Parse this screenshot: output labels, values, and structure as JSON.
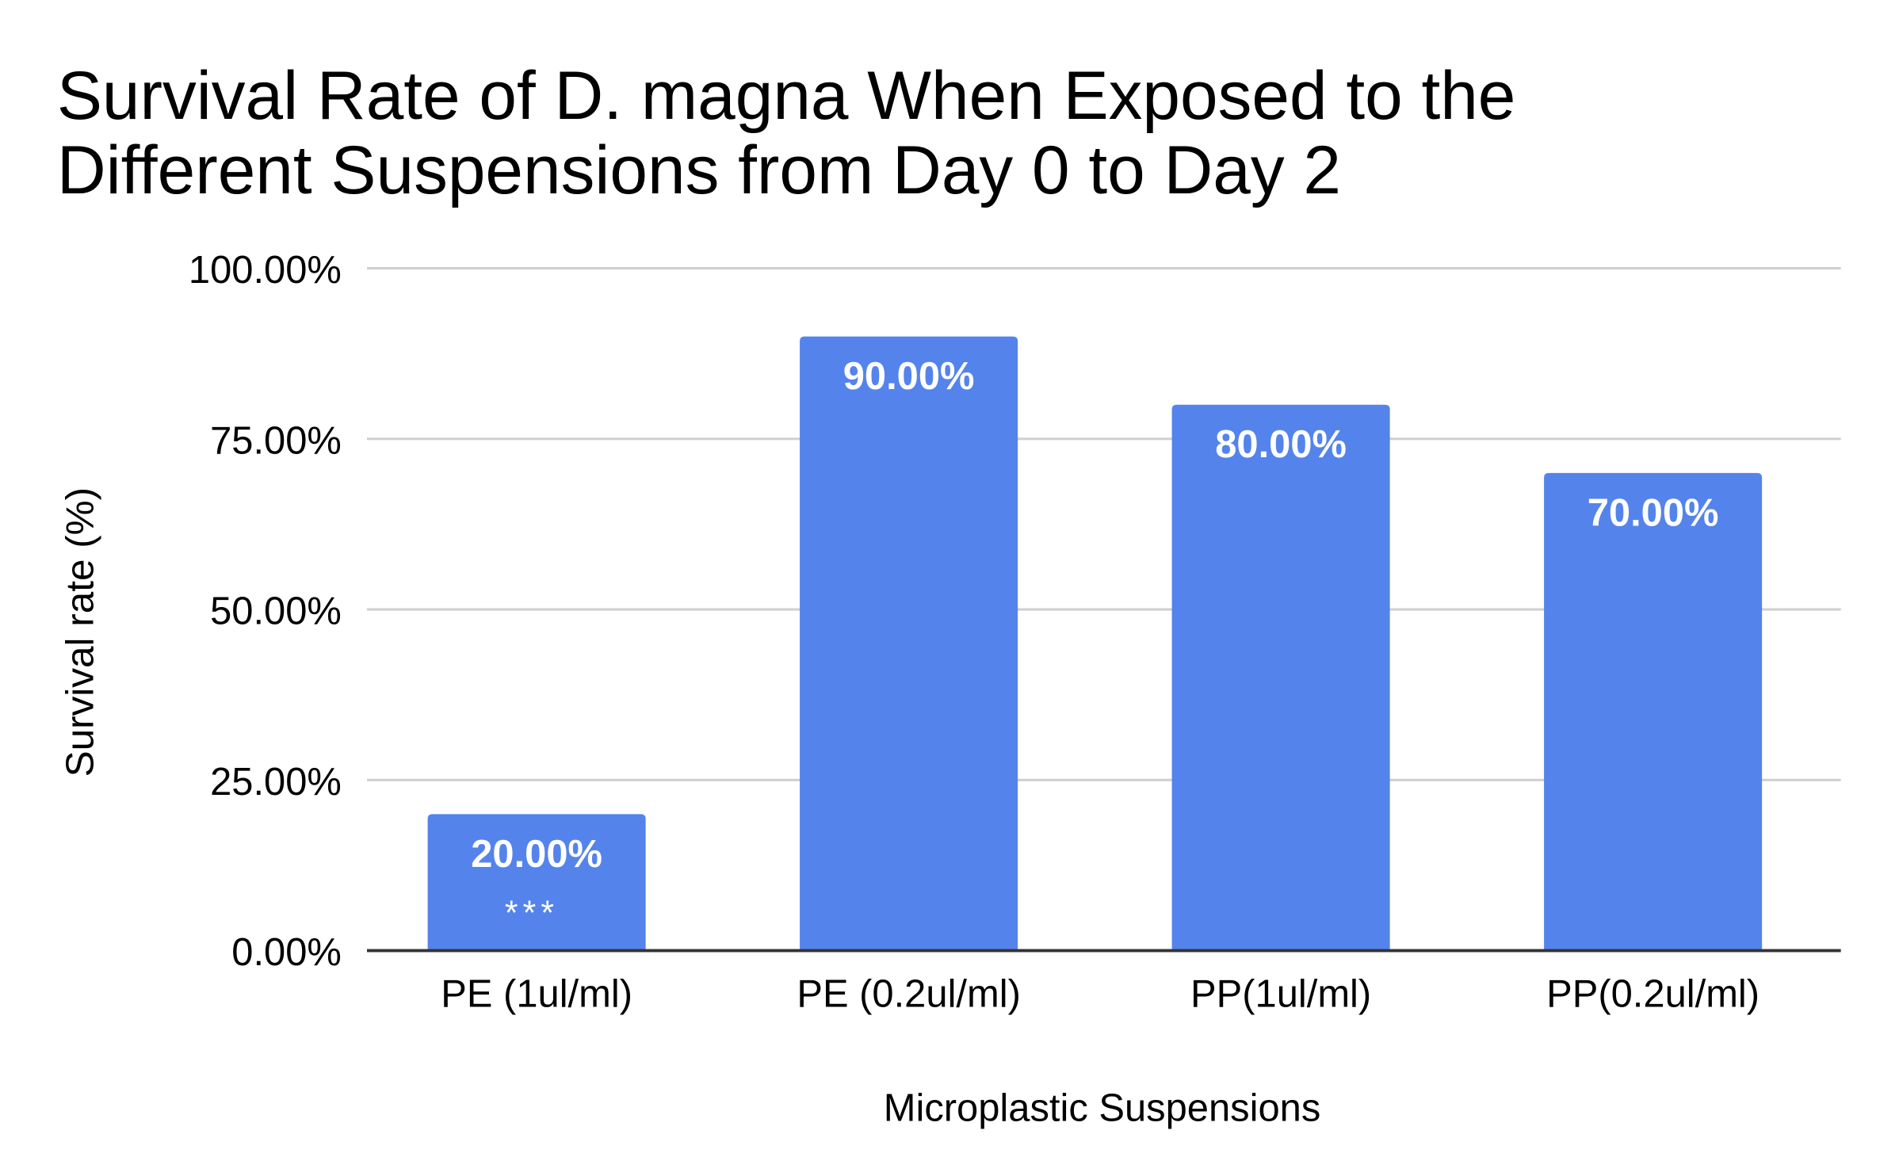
{
  "chart_data": {
    "type": "bar",
    "title_lines": [
      "Survival Rate of D. magna When Exposed to the",
      "Different Suspensions from Day 0 to Day 2"
    ],
    "xlabel": "Microplastic Suspensions",
    "ylabel": "Survival rate (%)",
    "categories": [
      "PE (1ul/ml)",
      "PE (0.2ul/ml)",
      "PP(1ul/ml)",
      "PP(0.2ul/ml)"
    ],
    "values": [
      20,
      90,
      80,
      70
    ],
    "data_labels": [
      "20.00%",
      "90.00%",
      "80.00%",
      "70.00%"
    ],
    "annotations": [
      "***",
      "",
      "",
      ""
    ],
    "ylim": [
      0,
      100
    ],
    "yticks": [
      0,
      25,
      50,
      75,
      100
    ],
    "ytick_labels": [
      "0.00%",
      "25.00%",
      "50.00%",
      "75.00%",
      "100.00%"
    ],
    "grid": true,
    "legend": "none",
    "colors": {
      "bar": "#5484EB",
      "grid": "#D0D0D0",
      "axis": "#333333",
      "label": "#FFFFFF"
    }
  }
}
